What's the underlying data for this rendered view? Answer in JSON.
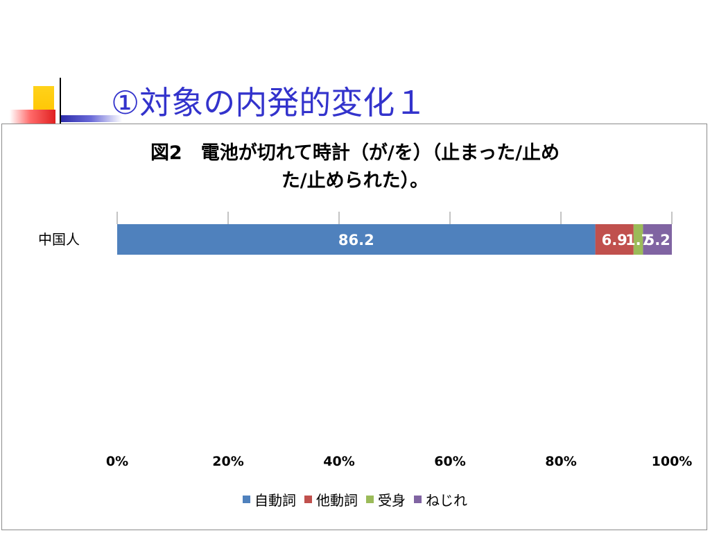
{
  "slide": {
    "title": "①対象の内発的変化１"
  },
  "chart_data": {
    "type": "bar",
    "orientation": "horizontal",
    "stacked": "percent",
    "title_lines": [
      "図2　電池が切れて時計（が/を）（止まった/止め",
      "た/止められた）。"
    ],
    "categories": [
      "中国人"
    ],
    "series": [
      {
        "name": "自動詞",
        "values": [
          86.2
        ],
        "color": "#4f81bd"
      },
      {
        "name": "他動詞",
        "values": [
          6.9
        ],
        "color": "#c0504d"
      },
      {
        "name": "受身",
        "values": [
          1.7
        ],
        "color": "#9bbb59"
      },
      {
        "name": "ねじれ",
        "values": [
          5.2
        ],
        "color": "#8064a2"
      }
    ],
    "x_ticks": [
      "0%",
      "20%",
      "40%",
      "60%",
      "80%",
      "100%"
    ],
    "xlim": [
      0,
      100
    ],
    "grid": false,
    "legend_position": "bottom",
    "data_label_color": "#ffffff"
  }
}
